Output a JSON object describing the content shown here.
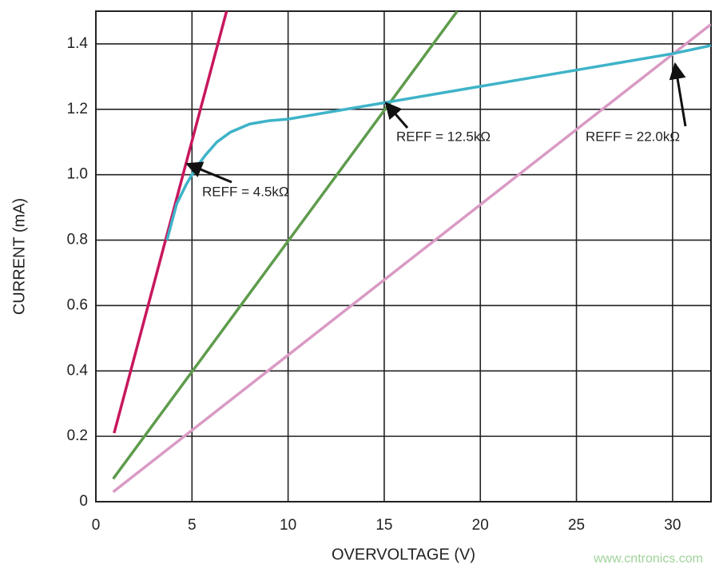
{
  "chart_data": {
    "type": "line",
    "xlabel": "OVERVOLTAGE (V)",
    "ylabel": "CURRENT (mA)",
    "xlim": [
      0,
      32
    ],
    "ylim": [
      0,
      1.5
    ],
    "xticks": [
      0,
      5,
      10,
      15,
      20,
      25,
      30
    ],
    "yticks": [
      0,
      0.2,
      0.4,
      0.6,
      0.8,
      {
        "value": 1,
        "label": "1.0"
      },
      1.2,
      1.4
    ],
    "grid": true,
    "series": [
      {
        "color": "#c8175d",
        "x": [
          0.95,
          6.8
        ],
        "values": [
          0.21,
          1.5
        ]
      },
      {
        "color": "#5e9c4c",
        "x": [
          0.9,
          18.8
        ],
        "values": [
          0.07,
          1.5
        ]
      },
      {
        "color": "#d99ac4",
        "x": [
          0.9,
          32
        ],
        "values": [
          0.03,
          1.46
        ]
      },
      {
        "color": "#3eb3c8",
        "x": [
          3.7,
          4.2,
          4.7,
          5.2,
          5.7,
          6.3,
          7,
          8,
          9,
          10,
          12,
          15,
          20,
          25,
          30,
          32
        ],
        "values": [
          0.8,
          0.91,
          0.97,
          1.02,
          1.06,
          1.1,
          1.13,
          1.155,
          1.165,
          1.17,
          1.19,
          1.22,
          1.27,
          1.32,
          1.37,
          1.395
        ]
      }
    ],
    "annotations": [
      "REFF = 4.5kΩ",
      "REFF = 12.5kΩ",
      "REFF = 22.0kΩ"
    ],
    "watermark": "www.cntronics.com"
  }
}
